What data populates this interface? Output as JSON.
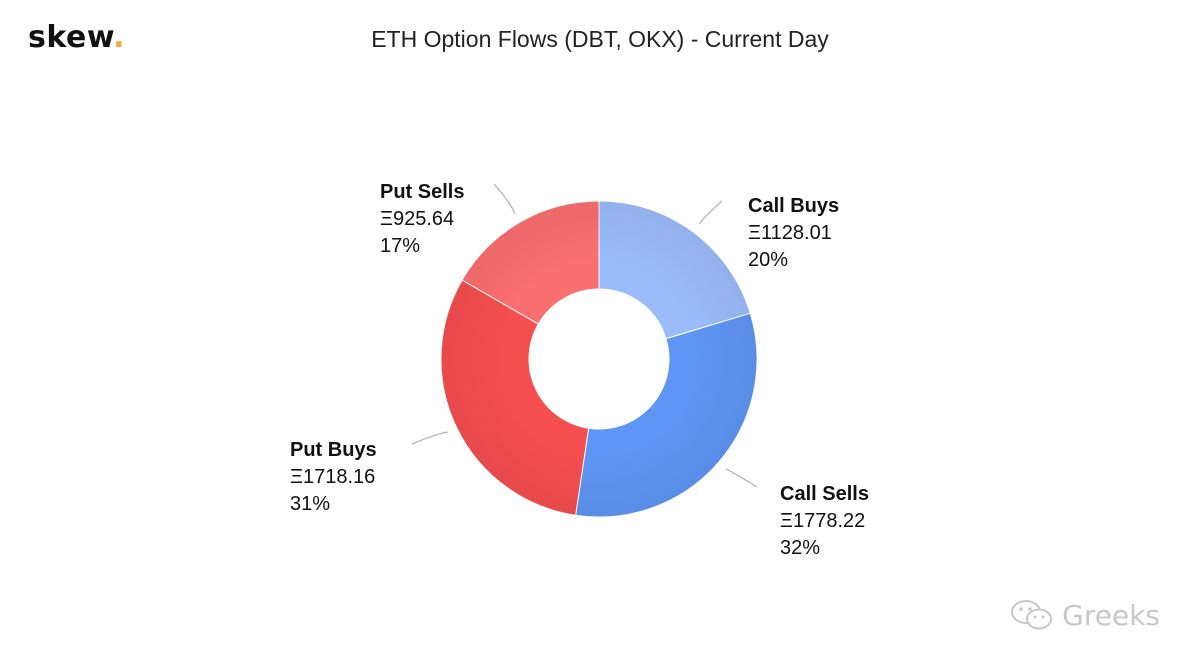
{
  "logo": {
    "text": "skew",
    "dot": "."
  },
  "title": "ETH Option Flows (DBT, OKX) - Current Day",
  "watermark": {
    "text": "Greeks",
    "icon": "wechat-icon"
  },
  "chart_data": {
    "type": "pie",
    "variant": "donut",
    "title": "ETH Option Flows (DBT, OKX) - Current Day",
    "currency_symbol": "Ξ",
    "slices": [
      {
        "name": "Call Buys",
        "value": 1128.01,
        "value_label": "Ξ1128.01",
        "percent_label": "20%",
        "color": "#9bbcfb"
      },
      {
        "name": "Call Sells",
        "value": 1778.22,
        "value_label": "Ξ1778.22",
        "percent_label": "32%",
        "color": "#5f95f4"
      },
      {
        "name": "Put Buys",
        "value": 1718.16,
        "value_label": "Ξ1718.16",
        "percent_label": "31%",
        "color": "#f54e4f"
      },
      {
        "name": "Put Sells",
        "value": 925.64,
        "value_label": "Ξ925.64",
        "percent_label": "17%",
        "color": "#fb6f70"
      }
    ]
  }
}
